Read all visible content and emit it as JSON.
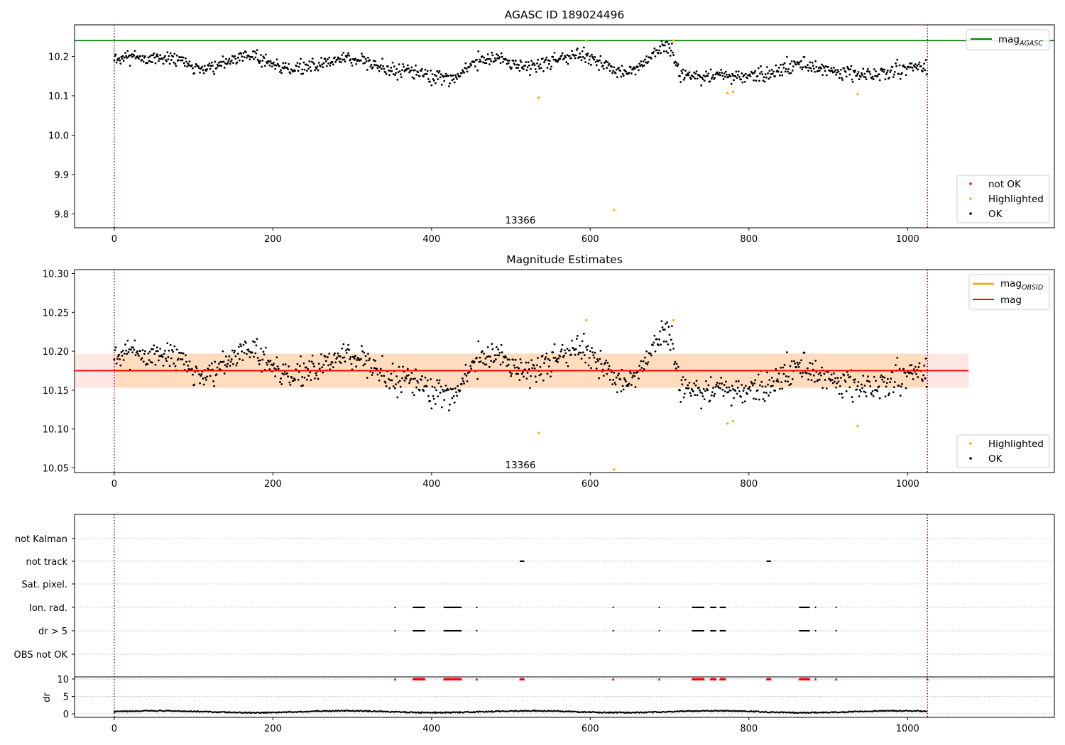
{
  "colors": {
    "ok": "#000000",
    "highlighted": "#ffa500",
    "not_ok": "#ff0000",
    "mag_agasc": "#008000",
    "mag": "#ff0000",
    "mag_obsid": "#ffa500",
    "band_obs": "#ffdab9",
    "band_total": "#ffe4e1",
    "vline": "#800080",
    "grid": "#b0b0b0"
  },
  "chart_data": [
    {
      "type": "scatter",
      "title": "AGASC ID 189024496",
      "xlim": [
        -50,
        1185
      ],
      "ylim": [
        9.765,
        10.28
      ],
      "x_ticks": [
        0,
        200,
        400,
        600,
        800,
        1000
      ],
      "x_tick_labels": [
        "0",
        "200",
        "400",
        "600",
        "800",
        "1000"
      ],
      "y_ticks": [
        9.8,
        9.9,
        10.0,
        10.1,
        10.2
      ],
      "y_tick_labels": [
        "9.8",
        "9.9",
        "10.0",
        "10.1",
        "10.2"
      ],
      "hline": {
        "y": 10.24,
        "label": "mag",
        "label_sub": "AGASC"
      },
      "vlines": [
        0,
        1025
      ],
      "annotation": {
        "x": 512,
        "y": 9.785,
        "text": "13366"
      },
      "series": [
        {
          "name": "OK",
          "n": 1025,
          "x_range": [
            0,
            1025
          ]
        },
        {
          "name": "Highlighted",
          "points": [
            [
              535,
              10.095
            ],
            [
              595,
              10.24
            ],
            [
              630,
              9.81
            ],
            [
              705,
              10.24
            ],
            [
              773,
              10.107
            ],
            [
              780,
              10.11
            ],
            [
              937,
              10.104
            ]
          ]
        },
        {
          "name": "not OK",
          "points": []
        }
      ],
      "legends": [
        {
          "position": "upper-right",
          "entries": [
            "mag"
          ]
        },
        {
          "position": "lower-right",
          "entries": [
            "not OK",
            "Highlighted",
            "OK"
          ]
        }
      ]
    },
    {
      "type": "scatter",
      "title": "Magnitude Estimates",
      "xlim": [
        -50,
        1185
      ],
      "ylim": [
        10.044,
        10.305
      ],
      "x_ticks": [
        0,
        200,
        400,
        600,
        800,
        1000
      ],
      "x_tick_labels": [
        "0",
        "200",
        "400",
        "600",
        "800",
        "1000"
      ],
      "y_ticks": [
        10.05,
        10.1,
        10.15,
        10.2,
        10.25,
        10.3
      ],
      "y_tick_labels": [
        "10.05",
        "10.10",
        "10.15",
        "10.20",
        "10.25",
        "10.30"
      ],
      "mag": 10.175,
      "mag_band": [
        10.153,
        10.197
      ],
      "band_total_x": [
        -50,
        1077
      ],
      "band_obs_x": [
        0,
        1025
      ],
      "vlines": [
        0,
        1025
      ],
      "annotation": {
        "x": 512,
        "y": 10.054,
        "text": "13366"
      },
      "series": [
        {
          "name": "OK",
          "n": 1025,
          "x_range": [
            0,
            1025
          ]
        },
        {
          "name": "Highlighted",
          "points": [
            [
              535,
              10.095
            ],
            [
              595,
              10.24
            ],
            [
              630,
              10.048
            ],
            [
              705,
              10.24
            ],
            [
              773,
              10.107
            ],
            [
              780,
              10.11
            ],
            [
              937,
              10.104
            ]
          ]
        }
      ],
      "legends": [
        {
          "position": "upper-right",
          "entries": [
            "mag",
            "mag"
          ],
          "subs": [
            "OBSID",
            ""
          ]
        },
        {
          "position": "lower-right",
          "entries": [
            "Highlighted",
            "OK"
          ]
        }
      ]
    },
    {
      "type": "scatter",
      "xlim": [
        -50,
        1185
      ],
      "flag_rows": [
        "not Kalman",
        "not track",
        "Sat. pixel.",
        "Ion. rad.",
        "dr > 5",
        "OBS not OK"
      ],
      "flags": {
        "not track": [
          [
            512,
            517
          ],
          [
            823,
            828
          ]
        ],
        "Ion. rad.": [
          [
            354,
            355
          ],
          [
            377,
            392
          ],
          [
            416,
            438
          ],
          [
            457,
            458
          ],
          [
            629,
            630
          ],
          [
            687,
            688
          ],
          [
            729,
            744
          ],
          [
            752,
            759
          ],
          [
            764,
            771
          ],
          [
            864,
            877
          ],
          [
            884,
            885
          ],
          [
            910,
            911
          ]
        ],
        "dr > 5": [
          [
            354,
            355
          ],
          [
            377,
            392
          ],
          [
            416,
            438
          ],
          [
            457,
            458
          ],
          [
            629,
            630
          ],
          [
            687,
            688
          ],
          [
            729,
            744
          ],
          [
            752,
            759
          ],
          [
            764,
            771
          ],
          [
            864,
            877
          ],
          [
            884,
            885
          ],
          [
            910,
            911
          ]
        ]
      },
      "dr": {
        "ylabel": "dr",
        "ylim": [
          -1,
          10.6
        ],
        "y_ticks": [
          0,
          5,
          10
        ],
        "y_tick_labels": [
          "0",
          "5",
          "10"
        ],
        "clip_value": 10,
        "clipped_ranges": [
          [
            354,
            355
          ],
          [
            377,
            392
          ],
          [
            416,
            438
          ],
          [
            457,
            458
          ],
          [
            512,
            517
          ],
          [
            629,
            630
          ],
          [
            687,
            688
          ],
          [
            729,
            744
          ],
          [
            752,
            759
          ],
          [
            764,
            771
          ],
          [
            823,
            828
          ],
          [
            864,
            877
          ],
          [
            884,
            885
          ],
          [
            910,
            911
          ],
          [
            1025,
            1026
          ]
        ],
        "baseline": 0.6
      },
      "x_ticks": [
        0,
        200,
        400,
        600,
        800,
        1000
      ],
      "x_tick_labels": [
        "0",
        "200",
        "400",
        "600",
        "800",
        "1000"
      ],
      "vlines": [
        0,
        1025
      ]
    }
  ]
}
